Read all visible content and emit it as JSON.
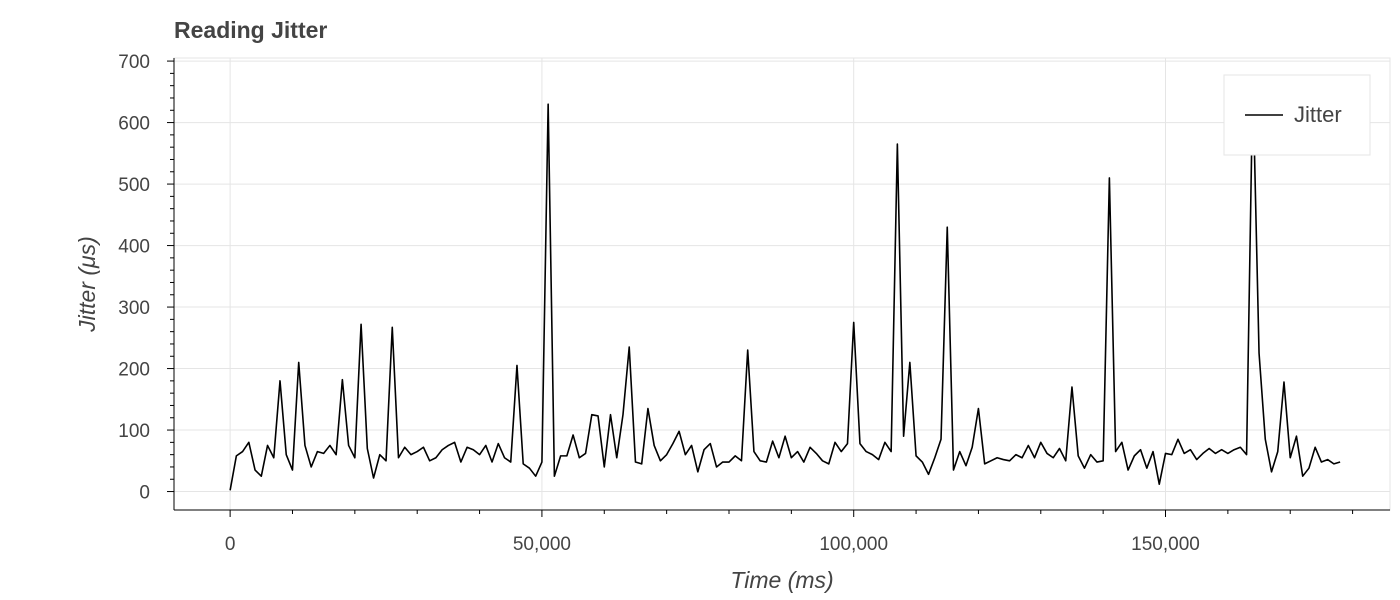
{
  "chart_data": {
    "type": "line",
    "title": "Reading Jitter",
    "xlabel": "Time (ms)",
    "ylabel": "Jitter (μs)",
    "xlim": [
      -9000,
      186000
    ],
    "ylim": [
      -30,
      705
    ],
    "x_ticks": [
      0,
      50000,
      100000,
      150000
    ],
    "x_tick_labels": [
      "0",
      "50,000",
      "100,000",
      "150,000"
    ],
    "y_ticks": [
      0,
      100,
      200,
      300,
      400,
      500,
      600,
      700
    ],
    "y_tick_labels": [
      "0",
      "100",
      "200",
      "300",
      "400",
      "500",
      "600",
      "700"
    ],
    "grid": true,
    "legend_position": "top-right",
    "series": [
      {
        "name": "Jitter",
        "color": "#000000",
        "x": [
          0,
          1000,
          2000,
          3000,
          4000,
          5000,
          6000,
          7000,
          8000,
          9000,
          10000,
          11000,
          12000,
          13000,
          14000,
          15000,
          16000,
          17000,
          18000,
          19000,
          20000,
          21000,
          22000,
          23000,
          24000,
          25000,
          26000,
          27000,
          28000,
          29000,
          30000,
          31000,
          32000,
          33000,
          34000,
          35000,
          36000,
          37000,
          38000,
          39000,
          40000,
          41000,
          42000,
          43000,
          44000,
          45000,
          46000,
          47000,
          48000,
          49000,
          50000,
          51000,
          52000,
          53000,
          54000,
          55000,
          56000,
          57000,
          58000,
          59000,
          60000,
          61000,
          62000,
          63000,
          64000,
          65000,
          66000,
          67000,
          68000,
          69000,
          70000,
          71000,
          72000,
          73000,
          74000,
          75000,
          76000,
          77000,
          78000,
          79000,
          80000,
          81000,
          82000,
          83000,
          84000,
          85000,
          86000,
          87000,
          88000,
          89000,
          90000,
          91000,
          92000,
          93000,
          94000,
          95000,
          96000,
          97000,
          98000,
          99000,
          100000,
          101000,
          102000,
          103000,
          104000,
          105000,
          106000,
          107000,
          108000,
          109000,
          110000,
          111000,
          112000,
          113000,
          114000,
          115000,
          116000,
          117000,
          118000,
          119000,
          120000,
          121000,
          122000,
          123000,
          124000,
          125000,
          126000,
          127000,
          128000,
          129000,
          130000,
          131000,
          132000,
          133000,
          134000,
          135000,
          136000,
          137000,
          138000,
          139000,
          140000,
          141000,
          142000,
          143000,
          144000,
          145000,
          146000,
          147000,
          148000,
          149000,
          150000,
          151000,
          152000,
          153000,
          154000,
          155000,
          156000,
          157000,
          158000,
          159000,
          160000,
          161000,
          162000,
          163000,
          164000,
          165000,
          166000,
          167000,
          168000,
          169000,
          170000,
          171000,
          172000,
          173000,
          174000,
          175000,
          176000,
          177000,
          178000
        ],
        "y": [
          2,
          58,
          65,
          80,
          35,
          25,
          75,
          55,
          180,
          60,
          35,
          210,
          75,
          40,
          65,
          62,
          75,
          60,
          182,
          75,
          55,
          272,
          70,
          22,
          60,
          50,
          267,
          55,
          72,
          60,
          65,
          72,
          50,
          55,
          68,
          75,
          80,
          48,
          72,
          68,
          60,
          75,
          48,
          78,
          55,
          48,
          205,
          45,
          38,
          25,
          48,
          630,
          25,
          58,
          58,
          92,
          55,
          62,
          125,
          123,
          40,
          125,
          55,
          125,
          235,
          48,
          45,
          135,
          75,
          50,
          60,
          78,
          98,
          60,
          75,
          32,
          68,
          78,
          40,
          48,
          48,
          58,
          50,
          230,
          65,
          50,
          48,
          82,
          55,
          90,
          55,
          65,
          48,
          72,
          62,
          50,
          45,
          80,
          65,
          78,
          275,
          78,
          65,
          60,
          52,
          80,
          65,
          565,
          90,
          210,
          58,
          48,
          28,
          55,
          85,
          430,
          35,
          65,
          42,
          72,
          135,
          45,
          50,
          55,
          52,
          50,
          60,
          55,
          75,
          55,
          80,
          62,
          55,
          70,
          50,
          170,
          58,
          38,
          60,
          48,
          50,
          510,
          65,
          80,
          35,
          58,
          68,
          38,
          65,
          12,
          62,
          60,
          85,
          62,
          68,
          52,
          62,
          70,
          62,
          68,
          62,
          68,
          72,
          60,
          670,
          225,
          85,
          32,
          65,
          178,
          55,
          90,
          25,
          38,
          72,
          48,
          52,
          45,
          48
        ]
      }
    ]
  }
}
